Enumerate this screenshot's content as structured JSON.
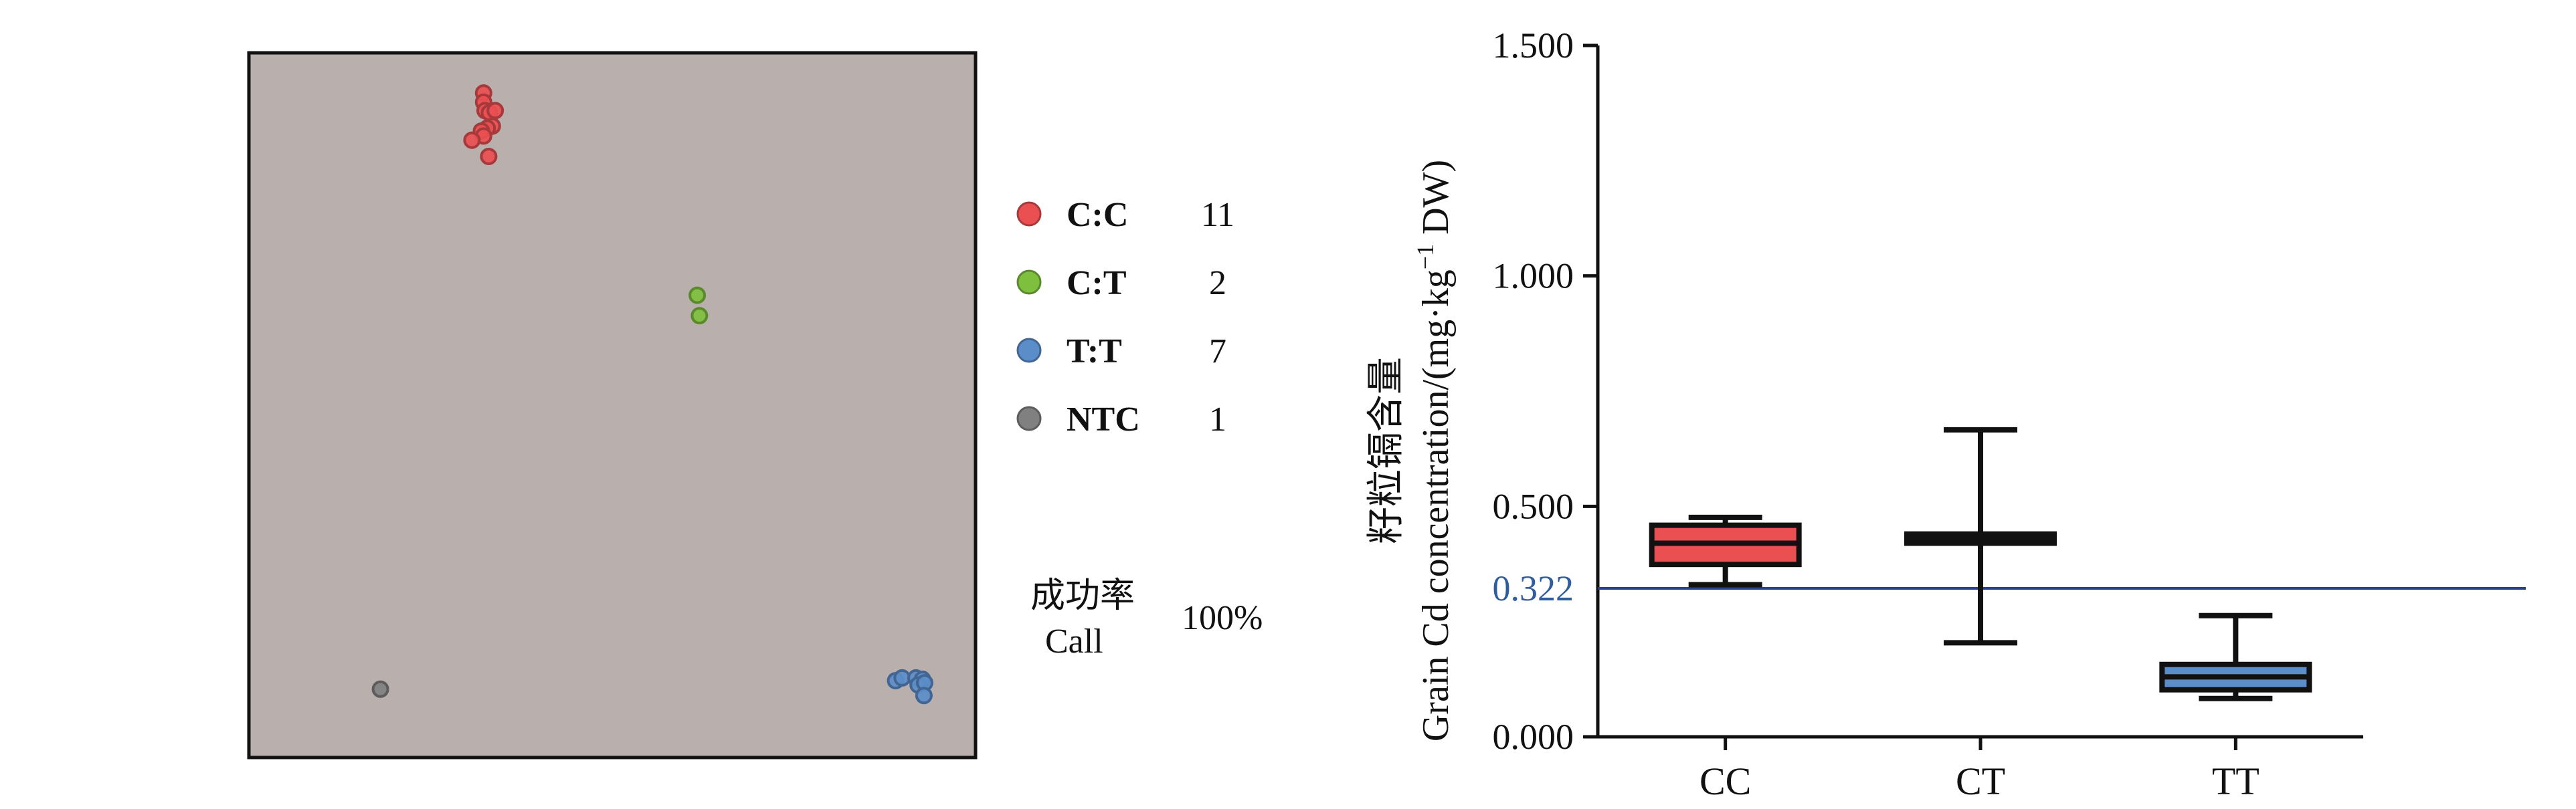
{
  "colors": {
    "plot_background": "#b9b0ae",
    "cc": "#ea4f51",
    "ct": "#7ebf3e",
    "tt": "#5b8ec9",
    "ntc": "#808080",
    "reference_line": "#2c3e8f",
    "reference_text": "#2f5d9e",
    "stroke": "#111111"
  },
  "chart_data": [
    {
      "type": "scatter",
      "title": "",
      "xlabel": "",
      "ylabel": "",
      "xlim": [
        0,
        1
      ],
      "ylim": [
        0,
        1
      ],
      "grid": false,
      "series": [
        {
          "name": "C:C",
          "color_key": "cc",
          "points": [
            {
              "x": 0.323,
              "y": 0.943
            },
            {
              "x": 0.323,
              "y": 0.93
            },
            {
              "x": 0.325,
              "y": 0.918
            },
            {
              "x": 0.331,
              "y": 0.915
            },
            {
              "x": 0.339,
              "y": 0.918
            },
            {
              "x": 0.335,
              "y": 0.896
            },
            {
              "x": 0.328,
              "y": 0.893
            },
            {
              "x": 0.32,
              "y": 0.889
            },
            {
              "x": 0.323,
              "y": 0.882
            },
            {
              "x": 0.307,
              "y": 0.876
            },
            {
              "x": 0.33,
              "y": 0.853
            }
          ]
        },
        {
          "name": "C:T",
          "color_key": "ct",
          "points": [
            {
              "x": 0.617,
              "y": 0.656
            },
            {
              "x": 0.62,
              "y": 0.627
            }
          ]
        },
        {
          "name": "T:T",
          "color_key": "tt",
          "points": [
            {
              "x": 0.89,
              "y": 0.109
            },
            {
              "x": 0.899,
              "y": 0.113
            },
            {
              "x": 0.918,
              "y": 0.113
            },
            {
              "x": 0.927,
              "y": 0.111
            },
            {
              "x": 0.921,
              "y": 0.103
            },
            {
              "x": 0.93,
              "y": 0.106
            },
            {
              "x": 0.929,
              "y": 0.088
            }
          ]
        },
        {
          "name": "NTC",
          "color_key": "ntc",
          "points": [
            {
              "x": 0.181,
              "y": 0.097
            }
          ]
        }
      ],
      "legend_placement": "right",
      "legend": [
        {
          "label": "C:C",
          "count": "11",
          "color_key": "cc"
        },
        {
          "label": "C:T",
          "count": "2",
          "color_key": "ct"
        },
        {
          "label": "T:T",
          "count": "7",
          "color_key": "tt"
        },
        {
          "label": "NTC",
          "count": "1",
          "color_key": "ntc"
        }
      ],
      "call_rate": {
        "label_zh": "成功率",
        "label_en": "Call",
        "value": "100%"
      }
    },
    {
      "type": "box",
      "title": "",
      "ylabel_zh": "籽粒镉含量",
      "ylabel_en": "Grain Cd concentration/(mg·kg",
      "ylabel_sup": "−1",
      "ylabel_tail": " DW)",
      "ylim": [
        0,
        1.5
      ],
      "yticks": [
        {
          "value": 0,
          "label": "0.000"
        },
        {
          "value": 0.5,
          "label": "0.500"
        },
        {
          "value": 1.0,
          "label": "1.000"
        },
        {
          "value": 1.5,
          "label": "1.500"
        }
      ],
      "reference_line": {
        "value": 0.322,
        "label": "0.322"
      },
      "grid": false,
      "categories": [
        "CC",
        "CT",
        "TT"
      ],
      "boxes": [
        {
          "category": "CC",
          "min": 0.33,
          "q1": 0.374,
          "median": 0.42,
          "q3": 0.459,
          "max": 0.476,
          "color_key": "cc"
        },
        {
          "category": "CT",
          "min": 0.204,
          "q1": 0.42,
          "median": 0.43,
          "q3": 0.44,
          "max": 0.666,
          "color_key": "ct"
        },
        {
          "category": "TT",
          "min": 0.083,
          "q1": 0.102,
          "median": 0.13,
          "q3": 0.157,
          "max": 0.263,
          "color_key": "tt"
        }
      ]
    }
  ]
}
